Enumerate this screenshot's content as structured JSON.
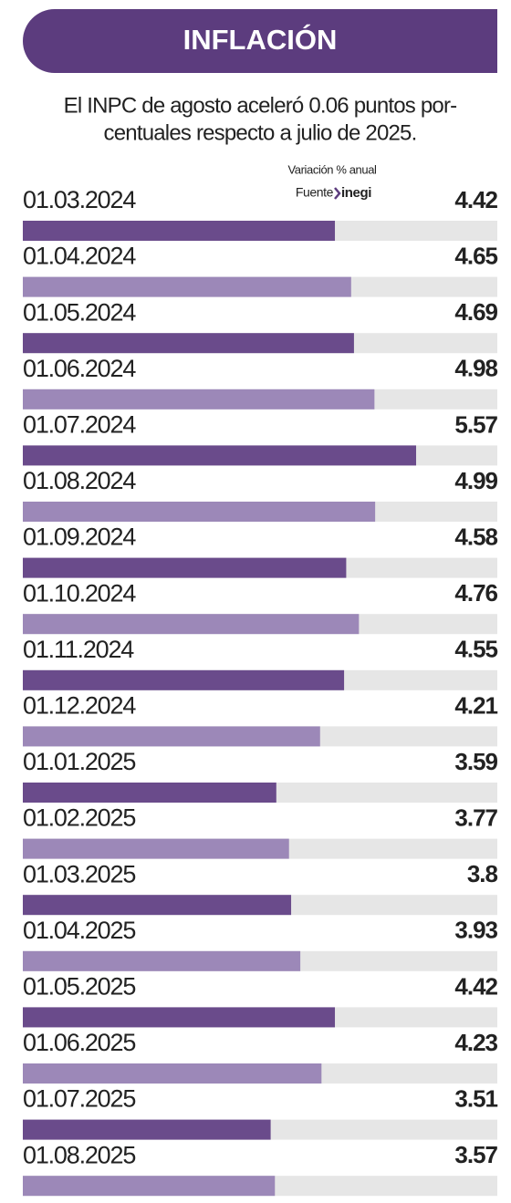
{
  "chart_data": {
    "type": "barh",
    "title": "INFLACIÓN",
    "subtitle": [
      "El INPC de agosto aceleró 0.06 puntos por-",
      "centuales respecto a julio de 2025."
    ],
    "value_label": "Variación % anual",
    "source_label": "Fuente",
    "source": "inegi",
    "categories": [
      "01.03.2024",
      "01.04.2024",
      "01.05.2024",
      "01.06.2024",
      "01.07.2024",
      "01.08.2024",
      "01.09.2024",
      "01.10.2024",
      "01.11.2024",
      "01.12.2024",
      "01.01.2025",
      "01.02.2025",
      "01.03.2025",
      "01.04.2025",
      "01.05.2025",
      "01.06.2025",
      "01.07.2025",
      "01.08.2025"
    ],
    "values": [
      4.42,
      4.65,
      4.69,
      4.98,
      5.57,
      4.99,
      4.58,
      4.76,
      4.55,
      4.21,
      3.59,
      3.77,
      3.8,
      3.93,
      4.42,
      4.23,
      3.51,
      3.57
    ],
    "colors": [
      "#6a4b8b",
      "#9c88b8"
    ],
    "track_color": "#e6e6e6",
    "xlim": [
      0,
      6.72
    ]
  }
}
